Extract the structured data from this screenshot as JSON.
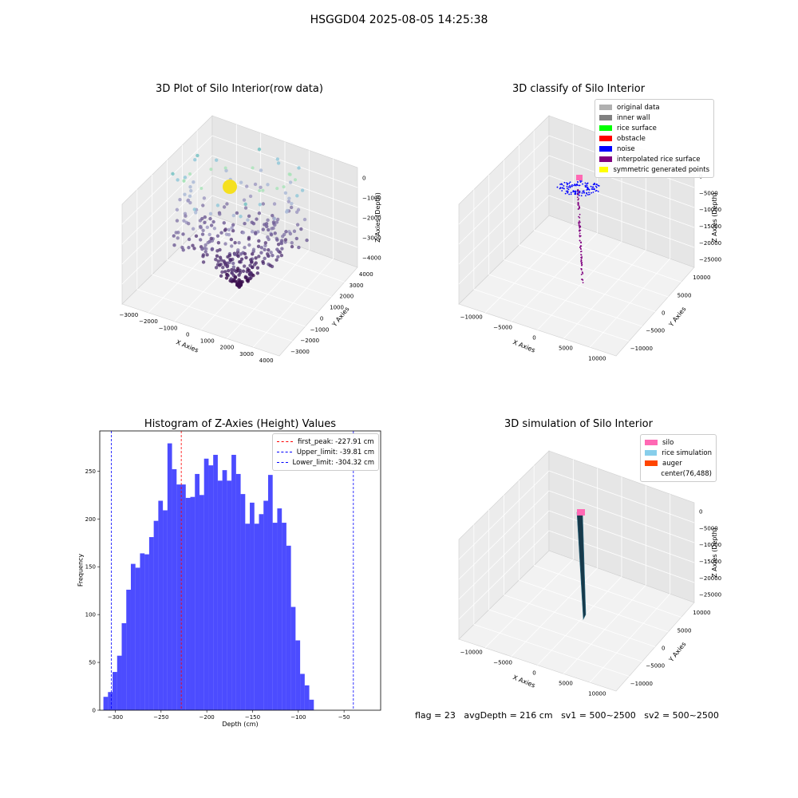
{
  "suptitle": "HSGGD04 2025-08-05 14:25:38",
  "footer": {
    "flag": "flag = 23",
    "avgdepth": "avgDepth = 216 cm",
    "sv1": "sv1 = 500~2500",
    "sv2": "sv2 = 500~2500"
  },
  "panel1": {
    "title": "3D Plot of Silo Interior(row data)",
    "xlabel": "X Axies",
    "ylabel": "Y Axies",
    "zlabel": "Z Axies (Depth)",
    "xticks": [
      "−3000",
      "−2000",
      "−1000",
      "0",
      "1000",
      "2000",
      "3000",
      "4000"
    ],
    "yticks": [
      "−3000",
      "−2000",
      "−1000",
      "0",
      "1000",
      "2000",
      "3000",
      "4000"
    ],
    "zticks": [
      "0",
      "−1000",
      "−2000",
      "−3000",
      "−4000"
    ]
  },
  "panel2": {
    "title": "3D classify of Silo Interior",
    "xlabel": "X Axies",
    "ylabel": "Y Axies",
    "zlabel": "Z Axies (Depth)",
    "xticks": [
      "−10000",
      "−5000",
      "0",
      "5000",
      "10000"
    ],
    "yticks": [
      "−10000",
      "−5000",
      "0",
      "5000",
      "10000"
    ],
    "zticks": [
      "0",
      "−5000",
      "−10000",
      "−15000",
      "−20000",
      "−25000"
    ],
    "legend": [
      {
        "label": "original data",
        "color": "#b0b0b0"
      },
      {
        "label": "inner wall",
        "color": "#808080"
      },
      {
        "label": "rice surface",
        "color": "#00ff00"
      },
      {
        "label": "obstacle",
        "color": "#ff0000"
      },
      {
        "label": "noise",
        "color": "#0000ff"
      },
      {
        "label": "interpolated rice surface",
        "color": "#800080"
      },
      {
        "label": "symmetric generated points",
        "color": "#ffff00"
      }
    ]
  },
  "panel3": {
    "title": "3D simulation of Silo Interior",
    "xlabel": "X Axies",
    "ylabel": "Y Axies",
    "zlabel": "Z Axies (Depth)",
    "xticks": [
      "−10000",
      "−5000",
      "0",
      "5000",
      "10000"
    ],
    "yticks": [
      "−10000",
      "−5000",
      "0",
      "5000",
      "10000"
    ],
    "zticks": [
      "0",
      "−5000",
      "−10000",
      "−15000",
      "−20000",
      "−25000"
    ],
    "legend": [
      {
        "label": "silo",
        "color": "#ff69b4"
      },
      {
        "label": "rice simulation",
        "color": "#87ceeb"
      },
      {
        "label": "auger",
        "color": "#ff4500"
      },
      {
        "label": "center(76,488)",
        "color": "#ffffff"
      }
    ]
  },
  "chart_data": [
    {
      "type": "bar",
      "title": "Histogram of Z-Axies (Height) Values",
      "xlabel": "Depth (cm)",
      "ylabel": "Frequency",
      "xlim": [
        -317,
        -10
      ],
      "ylim": [
        0,
        292
      ],
      "bar_color": "#0000ff",
      "bar_alpha": 0.7,
      "xticks": [
        -300,
        -250,
        -200,
        -150,
        -100,
        -50
      ],
      "xtick_labels": [
        "−300",
        "−250",
        "−200",
        "−150",
        "−100",
        "−50"
      ],
      "yticks": [
        0,
        50,
        100,
        150,
        200,
        250
      ],
      "bin_start": -313,
      "bin_width": 5.0,
      "values": [
        14,
        19,
        40,
        57,
        91,
        126,
        153,
        149,
        164,
        163,
        181,
        198,
        219,
        209,
        279,
        252,
        236,
        236,
        222,
        223,
        247,
        225,
        263,
        256,
        267,
        240,
        251,
        240,
        267,
        247,
        226,
        195,
        217,
        195,
        205,
        219,
        246,
        196,
        211,
        196,
        172,
        108,
        73,
        38,
        26,
        11
      ],
      "lines": [
        {
          "label": "first_peak: -227.91 cm",
          "x": -227.91,
          "color": "#ff0000"
        },
        {
          "label": "Upper_limit: -39.81 cm",
          "x": -39.81,
          "color": "#0000ff"
        },
        {
          "label": "Lower_limit: -304.32 cm",
          "x": -304.32,
          "color": "#0000ff"
        }
      ]
    }
  ]
}
